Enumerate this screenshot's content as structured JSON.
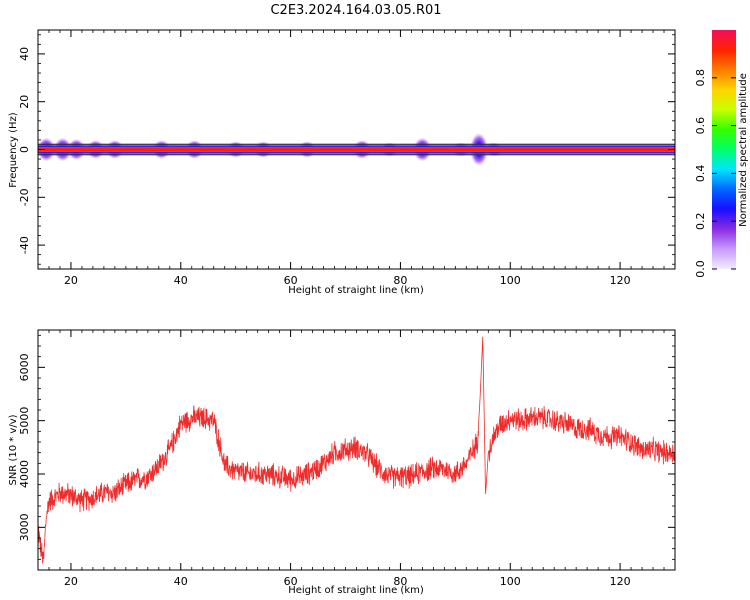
{
  "figure": {
    "title": "C2E3.2024.164.03.05.R01"
  },
  "chart_data": [
    {
      "type": "heatmap",
      "xlabel": "Height of straight line (km)",
      "ylabel": "Frequency (Hz)",
      "xlim": [
        14,
        130
      ],
      "ylim": [
        -50,
        50
      ],
      "x_ticks": [
        20,
        40,
        60,
        80,
        100,
        120
      ],
      "y_ticks": [
        -40,
        -20,
        0,
        20,
        40
      ],
      "x_tick_labels": [
        "20",
        "40",
        "60",
        "80",
        "100",
        "120"
      ],
      "y_tick_labels": [
        "-40",
        "-20",
        "0",
        "20",
        "40"
      ],
      "band": {
        "center_frequency": 0,
        "core_half_width": 1.5,
        "spread_half_width_min": 2.5,
        "spread_half_width_max": 6
      },
      "bursts": [
        {
          "x": 15.5,
          "half_width": 5
        },
        {
          "x": 18.5,
          "half_width": 5
        },
        {
          "x": 21,
          "half_width": 4.5
        },
        {
          "x": 24.5,
          "half_width": 4
        },
        {
          "x": 28,
          "half_width": 4
        },
        {
          "x": 36.5,
          "half_width": 4
        },
        {
          "x": 42.5,
          "half_width": 4
        },
        {
          "x": 50,
          "half_width": 3.5
        },
        {
          "x": 55,
          "half_width": 3.5
        },
        {
          "x": 63,
          "half_width": 3.5
        },
        {
          "x": 73,
          "half_width": 4
        },
        {
          "x": 78,
          "half_width": 3
        },
        {
          "x": 84,
          "half_width": 5
        },
        {
          "x": 91,
          "half_width": 3
        },
        {
          "x": 94.3,
          "half_width": 7
        },
        {
          "x": 97,
          "half_width": 3
        }
      ],
      "colorbar": {
        "label": "Normalized spectral amplitude",
        "ticks": [
          0.0,
          0.2,
          0.4,
          0.6,
          0.8
        ],
        "tick_labels": [
          "0.0",
          "0.2",
          "0.4",
          "0.6",
          "0.8"
        ],
        "range": [
          0,
          1
        ],
        "colors": [
          "#f4ecff",
          "#c89bff",
          "#8a2be2",
          "#1a0dff",
          "#0066ff",
          "#00e5ff",
          "#00ff6a",
          "#34ff00",
          "#c8ff00",
          "#ffd400",
          "#ff7a00",
          "#ff2200",
          "#f0105c"
        ]
      }
    },
    {
      "type": "line",
      "xlabel": "Height of straight line (km)",
      "ylabel": "SNR (10 * v/v)",
      "xlim": [
        14,
        130
      ],
      "ylim": [
        2200,
        6700
      ],
      "x_ticks": [
        20,
        40,
        60,
        80,
        100,
        120
      ],
      "y_ticks": [
        3000,
        4000,
        5000,
        6000
      ],
      "x_tick_labels": [
        "20",
        "40",
        "60",
        "80",
        "100",
        "120"
      ],
      "y_tick_labels": [
        "3000",
        "4000",
        "5000",
        "6000"
      ],
      "color": "#ee2c2c",
      "series": [
        {
          "x": [
            14,
            14.5,
            15,
            15.5,
            16,
            17,
            18,
            20,
            22,
            24,
            26,
            28,
            30,
            32,
            34,
            36,
            38,
            40,
            42,
            44,
            46,
            47,
            48,
            50,
            52,
            55,
            58,
            60,
            62,
            64,
            66,
            68,
            70,
            72,
            74,
            76,
            78,
            80,
            82,
            84,
            86,
            88,
            90,
            92,
            93,
            94,
            94.5,
            95,
            95.5,
            96,
            97,
            98,
            100,
            102,
            104,
            106,
            108,
            110,
            112,
            114,
            116,
            118,
            120,
            122,
            124,
            126,
            128,
            130
          ],
          "y": [
            3000,
            2600,
            2350,
            3200,
            3500,
            3550,
            3650,
            3600,
            3500,
            3550,
            3650,
            3650,
            3800,
            3900,
            3950,
            4150,
            4450,
            4950,
            5050,
            5050,
            5000,
            4600,
            4150,
            4050,
            4000,
            4000,
            3950,
            3900,
            3950,
            4050,
            4200,
            4400,
            4450,
            4500,
            4350,
            4100,
            3950,
            3950,
            3950,
            4050,
            4100,
            4100,
            4000,
            4200,
            4400,
            4600,
            5400,
            6600,
            3600,
            4400,
            4700,
            4900,
            5050,
            5000,
            5050,
            5050,
            5000,
            4950,
            4850,
            4850,
            4750,
            4700,
            4700,
            4600,
            4450,
            4450,
            4400,
            4400
          ]
        }
      ],
      "noise_amplitude": 260
    }
  ]
}
